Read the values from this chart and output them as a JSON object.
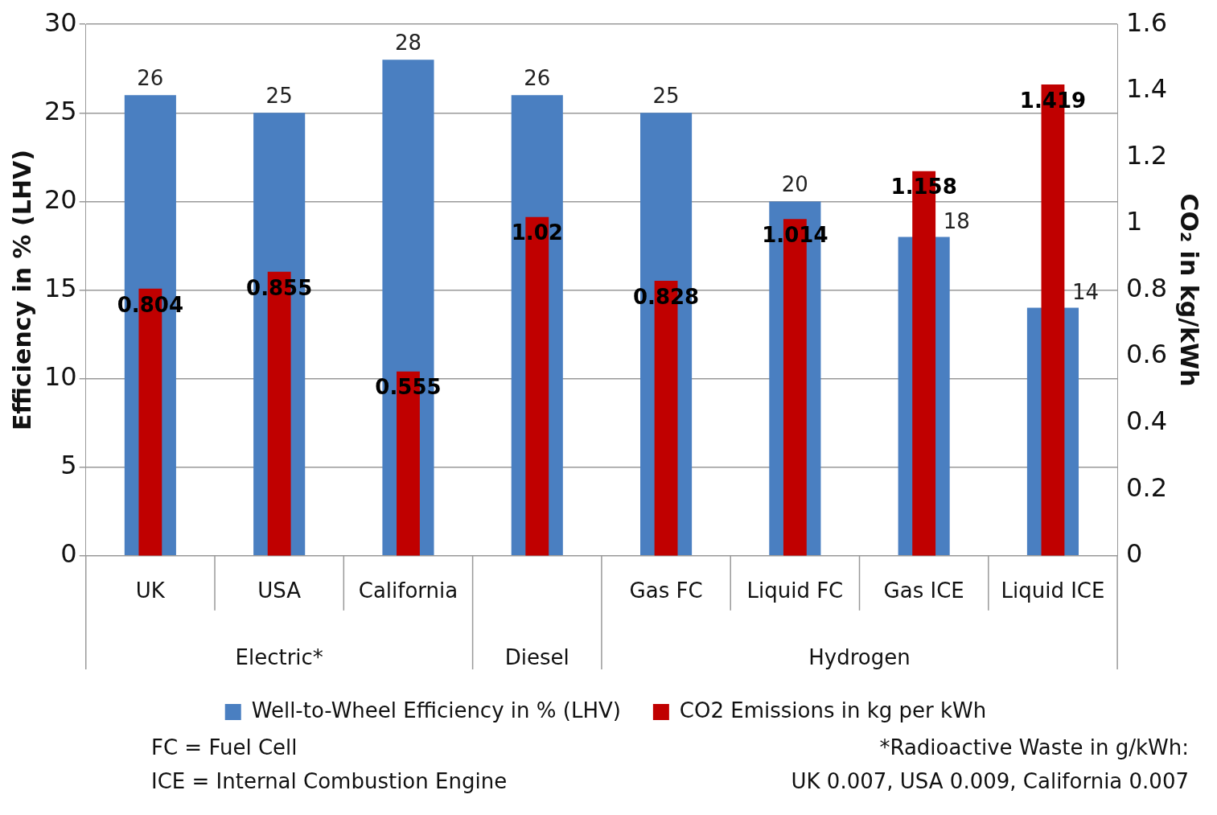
{
  "chart_data": {
    "type": "bar",
    "categories": [
      "UK",
      "USA",
      "California",
      null,
      "Gas FC",
      "Liquid FC",
      "Gas ICE",
      "Liquid ICE"
    ],
    "series": [
      {
        "name": "Well-to-Wheel Efficiency in % (LHV)",
        "color": "#4a7fc1",
        "values": [
          26,
          25,
          28,
          26,
          25,
          20,
          18,
          14
        ]
      },
      {
        "name": "CO2 Emissions in kg per kWh",
        "color": "#c00000",
        "axis": "y2",
        "values": [
          0.804,
          0.855,
          0.555,
          1.02,
          0.828,
          1.014,
          1.158,
          1.419
        ]
      }
    ],
    "ylabel": "Efficiency in % (LHV)",
    "y2label": "CO₂ in kg/kWh",
    "ylim": [
      0,
      30
    ],
    "yticks": [
      0,
      5,
      10,
      15,
      20,
      25,
      30
    ],
    "y2lim": [
      0,
      1.6
    ],
    "y2ticks": [
      0,
      0.2,
      0.4,
      0.6,
      0.8,
      1,
      1.2,
      1.4,
      1.6
    ],
    "grid": "y",
    "legend": "bottom",
    "data_labels": true,
    "annotations": [
      "Electric*",
      "Diesel",
      "Hydrogen",
      "FC = Fuel Cell",
      "ICE = Internal Combustion Engine",
      "*Radioactive Waste in g/kWh:",
      "UK 0.007, USA 0.009, California 0.007"
    ]
  }
}
